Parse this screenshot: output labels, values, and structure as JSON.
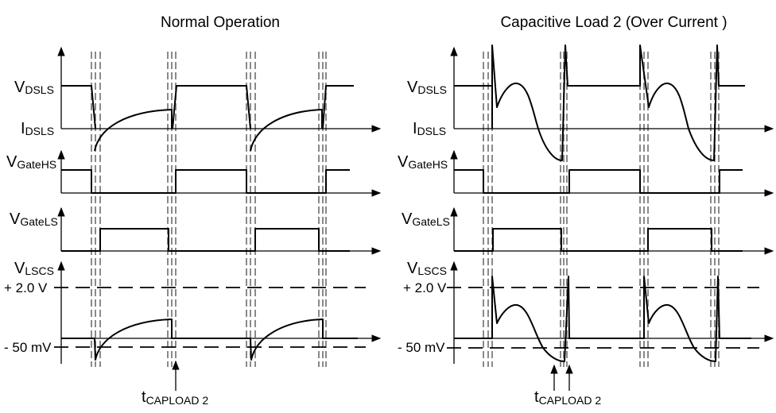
{
  "panels": [
    {
      "title": "Normal Operation",
      "signals": {
        "vdsls": {
          "main": "V",
          "sub": "DSLS"
        },
        "idsls": {
          "main": "I",
          "sub": "DSLS"
        },
        "vgatehs": {
          "main": "V",
          "sub": "GateHS"
        },
        "vgatels": {
          "main": "V",
          "sub": "GateLS"
        },
        "vlscs": {
          "main": "V",
          "sub": "LSCS"
        }
      },
      "thresholds": {
        "high": "+ 2.0 V",
        "low": "- 50 mV"
      },
      "annotation": {
        "main": "t",
        "sub": "CAPLOAD 2"
      }
    },
    {
      "title": "Capacitive Load  2 (Over Current )",
      "signals": {
        "vdsls": {
          "main": "V",
          "sub": "DSLS"
        },
        "idsls": {
          "main": "I",
          "sub": "DSLS"
        },
        "vgatehs": {
          "main": "V",
          "sub": "GateHS"
        },
        "vgatels": {
          "main": "V",
          "sub": "GateLS"
        },
        "vlscs": {
          "main": "V",
          "sub": "LSCS"
        }
      },
      "thresholds": {
        "high": "+ 2.0 V",
        "low": "- 50 mV"
      },
      "annotation": {
        "main": "t",
        "sub": "CAPLOAD 2"
      }
    }
  ]
}
